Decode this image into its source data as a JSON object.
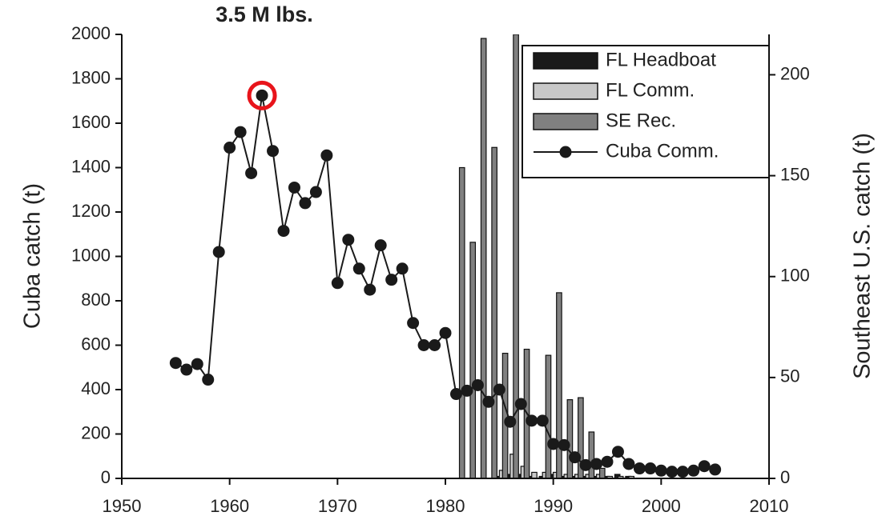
{
  "chart_data": {
    "type": "combo",
    "annotation": "3.5 M lbs.",
    "annotation_color": "#e8141b",
    "ylabel": "Cuba catch (t)",
    "y2label": "Southeast U.S. catch (t)",
    "xlim": [
      1950,
      2010
    ],
    "xticks": [
      1950,
      1960,
      1970,
      1980,
      1990,
      2000,
      2010
    ],
    "ylim": [
      0,
      2000
    ],
    "yticks": [
      0,
      200,
      400,
      600,
      800,
      1000,
      1200,
      1400,
      1600,
      1800,
      2000
    ],
    "y2lim": [
      0,
      220
    ],
    "y2ticks": [
      0,
      50,
      100,
      150,
      200
    ],
    "legend": "upper right",
    "highlight_x": 1963,
    "series": [
      {
        "name": "FL Headboat",
        "type": "bar",
        "axis": "y2",
        "color": "#1a1a1a",
        "x": [
          1985,
          1986,
          1987,
          1988,
          1989,
          1990,
          1991,
          1992,
          1993,
          1994,
          1995,
          1996,
          1997
        ],
        "values": [
          1,
          2,
          2,
          1,
          1,
          2,
          1,
          1,
          1,
          1,
          1,
          2,
          1
        ]
      },
      {
        "name": "FL Comm.",
        "type": "bar",
        "axis": "y2",
        "color": "#c8c8c8",
        "x": [
          1985,
          1986,
          1987,
          1988,
          1989,
          1990,
          1991,
          1992,
          1993,
          1994,
          1995,
          1996,
          1997
        ],
        "values": [
          4,
          12,
          6,
          3,
          3,
          3,
          2,
          2,
          2,
          2,
          1,
          1,
          1
        ]
      },
      {
        "name": "SE Rec.",
        "type": "bar",
        "axis": "y2",
        "color": "#808080",
        "x": [
          1981,
          1982,
          1983,
          1984,
          1985,
          1986,
          1987,
          1989,
          1990,
          1991,
          1992,
          1993,
          1994
        ],
        "values": [
          154,
          117,
          218,
          164,
          62,
          220,
          64,
          61,
          92,
          39,
          40,
          23,
          5
        ]
      },
      {
        "name": "Cuba Comm.",
        "type": "line",
        "axis": "y",
        "color": "#1a1a1a",
        "x": [
          1955,
          1956,
          1957,
          1958,
          1959,
          1960,
          1961,
          1962,
          1963,
          1964,
          1965,
          1966,
          1967,
          1968,
          1969,
          1970,
          1971,
          1972,
          1973,
          1974,
          1975,
          1976,
          1977,
          1978,
          1979,
          1980,
          1981,
          1982,
          1983,
          1984,
          1985,
          1986,
          1987,
          1988,
          1989,
          1990,
          1991,
          1992,
          1993,
          1994,
          1995,
          1996,
          1997,
          1998,
          1999,
          2000,
          2001,
          2002,
          2003,
          2004,
          2005
        ],
        "values": [
          520,
          490,
          515,
          445,
          1020,
          1490,
          1560,
          1375,
          1725,
          1475,
          1115,
          1310,
          1240,
          1290,
          1455,
          880,
          1075,
          945,
          850,
          1050,
          895,
          945,
          700,
          600,
          600,
          655,
          380,
          395,
          420,
          345,
          400,
          255,
          335,
          260,
          260,
          155,
          150,
          95,
          60,
          65,
          75,
          120,
          65,
          45,
          45,
          35,
          30,
          30,
          35,
          55,
          40
        ]
      }
    ]
  }
}
